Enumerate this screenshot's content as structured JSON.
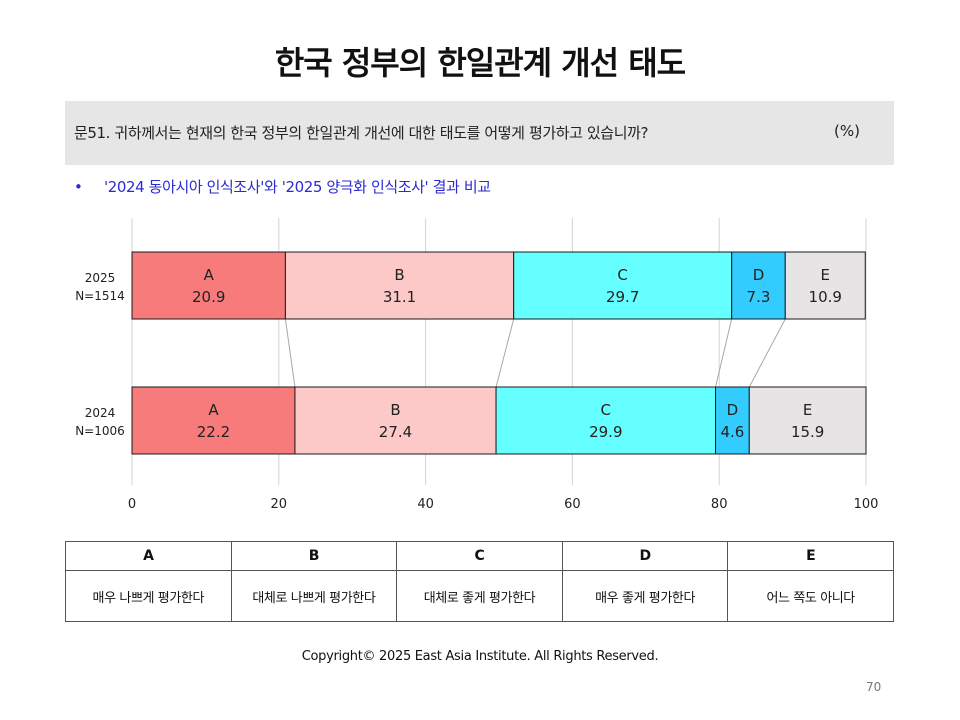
{
  "title": "한국 정부의 한일관계 개선 태도",
  "question": {
    "text": "문51. 귀하께서는 현재의 한국 정부의 한일관계 개선에 대한 태도를 어떻게 평가하고 있습니까?",
    "unit": "(%)"
  },
  "bullet": {
    "symbol": "•",
    "text": "'2024 동아시아 인식조사'와 '2025 양극화 인식조사' 결과 비교"
  },
  "chart_data": {
    "type": "bar",
    "orientation": "horizontal",
    "stacked": true,
    "rows": [
      {
        "label_year": "2025",
        "label_n": "N=1514",
        "values": [
          20.9,
          31.1,
          29.7,
          7.3,
          10.9
        ]
      },
      {
        "label_year": "2024",
        "label_n": "N=1006",
        "values": [
          22.2,
          27.4,
          29.9,
          4.6,
          15.9
        ]
      }
    ],
    "segments": [
      "A",
      "B",
      "C",
      "D",
      "E"
    ],
    "colors": [
      "#f77b7b",
      "#fcc8c8",
      "#66ffff",
      "#33ccff",
      "#e6e4e4"
    ],
    "xlim": [
      0,
      100
    ],
    "xticks": [
      "0",
      "20",
      "40",
      "60",
      "80",
      "100"
    ],
    "grid": true,
    "connector_lines": true
  },
  "legend": {
    "headers": [
      "A",
      "B",
      "C",
      "D",
      "E"
    ],
    "descriptions": [
      "매우 나쁘게 평가한다",
      "대체로 나쁘게 평가한다",
      "대체로 좋게 평가한다",
      "매우 좋게 평가한다",
      "어느 쪽도 아니다"
    ]
  },
  "footer": {
    "copyright": "Copyright© 2025 East Asia Institute. All Rights Reserved.",
    "page": "70"
  }
}
